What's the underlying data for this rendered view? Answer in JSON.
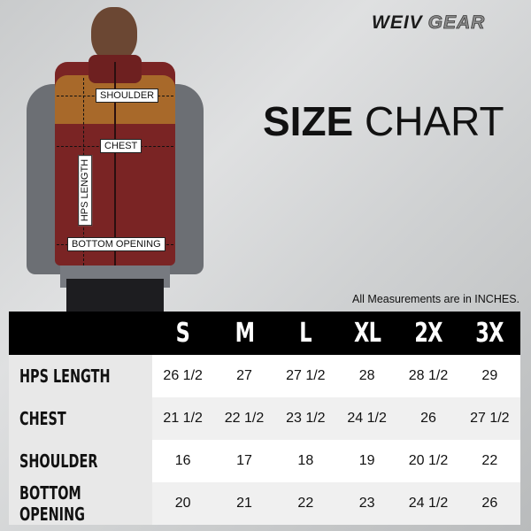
{
  "brand": {
    "part1": "WEIV",
    "part2": "GEAR"
  },
  "title": {
    "bold": "SIZE",
    "light": "CHART"
  },
  "note": "All Measurements are in INCHES.",
  "figure_labels": {
    "shoulder": "SHOULDER",
    "chest": "CHEST",
    "hps_length": "HPS LENGTH",
    "bottom_opening": "BOTTOM OPENING"
  },
  "colors": {
    "vest": "#7a2424",
    "yoke": "#a8692a",
    "header": "#000000"
  },
  "table": {
    "sizes": [
      "S",
      "M",
      "L",
      "XL",
      "2X",
      "3X"
    ],
    "rows": [
      {
        "label": "HPS LENGTH",
        "values": [
          "26 1/2",
          "27",
          "27 1/2",
          "28",
          "28 1/2",
          "29"
        ]
      },
      {
        "label": "CHEST",
        "values": [
          "21 1/2",
          "22 1/2",
          "23 1/2",
          "24 1/2",
          "26",
          "27 1/2"
        ]
      },
      {
        "label": "SHOULDER",
        "values": [
          "16",
          "17",
          "18",
          "19",
          "20 1/2",
          "22"
        ]
      },
      {
        "label": "BOTTOM OPENING",
        "values": [
          "20",
          "21",
          "22",
          "23",
          "24 1/2",
          "26"
        ]
      }
    ]
  }
}
